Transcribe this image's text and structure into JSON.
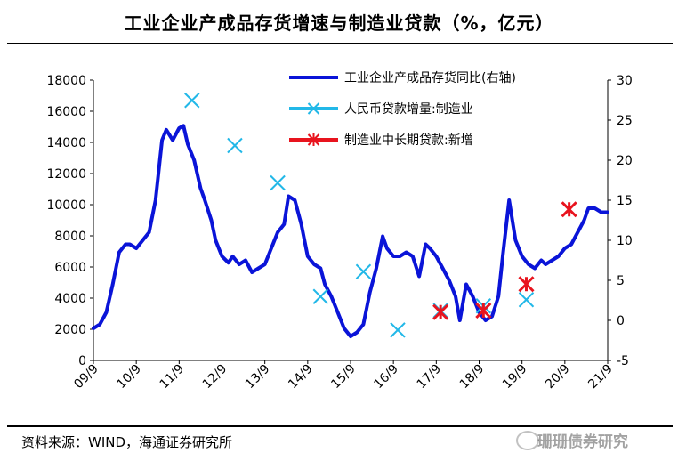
{
  "header": {
    "title": "工业企业产成品存货增速与制造业贷款（%，亿元）",
    "source": "资料来源：WIND，海通证券研究所",
    "watermark": "珊珊债券研究"
  },
  "colors": {
    "line": "#0a14d8",
    "cyan": "#22b8e8",
    "red": "#e8141e"
  },
  "chart_data": {
    "type": "line",
    "title": "工业企业产成品存货增速与制造业贷款（%，亿元）",
    "left_axis": {
      "ylim": [
        0,
        18000
      ],
      "ticks": [
        0,
        2000,
        4000,
        6000,
        8000,
        10000,
        12000,
        14000,
        16000,
        18000
      ]
    },
    "right_axis": {
      "ylim": [
        -5,
        30
      ],
      "ticks": [
        -5,
        0,
        5,
        10,
        15,
        20,
        25,
        30
      ]
    },
    "x_axis": {
      "ticks": [
        "09/9",
        "10/9",
        "11/9",
        "12/9",
        "13/9",
        "14/9",
        "15/9",
        "16/9",
        "17/9",
        "18/9",
        "19/9",
        "20/9",
        "21/9"
      ],
      "range": [
        0,
        12
      ]
    },
    "series": [
      {
        "name": "工业企业产成品存货同比(右轴)",
        "axis": "right",
        "style": "line",
        "x": [
          0,
          0.15,
          0.3,
          0.45,
          0.6,
          0.75,
          0.85,
          1.0,
          1.15,
          1.3,
          1.45,
          1.6,
          1.7,
          1.85,
          2.0,
          2.1,
          2.2,
          2.35,
          2.5,
          2.6,
          2.75,
          2.85,
          3.0,
          3.15,
          3.25,
          3.4,
          3.55,
          3.7,
          3.85,
          4.0,
          4.15,
          4.3,
          4.45,
          4.55,
          4.7,
          4.85,
          5.0,
          5.15,
          5.3,
          5.4,
          5.55,
          5.7,
          5.85,
          6.0,
          6.15,
          6.3,
          6.45,
          6.6,
          6.75,
          6.85,
          7.0,
          7.15,
          7.3,
          7.45,
          7.6,
          7.75,
          7.85,
          8.0,
          8.15,
          8.3,
          8.45,
          8.55,
          8.7,
          8.85,
          9.0,
          9.15,
          9.3,
          9.45,
          9.55,
          9.7,
          9.85,
          10.0,
          10.15,
          10.3,
          10.45,
          10.55,
          10.7,
          10.85,
          11.0,
          11.15,
          11.3,
          11.45,
          11.55,
          11.7,
          11.85,
          12.0
        ],
        "values": [
          -1.0,
          -0.5,
          1.0,
          4.5,
          8.5,
          9.5,
          9.5,
          9.0,
          10.0,
          11.0,
          15.0,
          22.5,
          23.8,
          22.5,
          24.0,
          24.3,
          22.0,
          20.0,
          16.5,
          15.0,
          12.5,
          10.0,
          8.0,
          7.2,
          8.0,
          7.0,
          7.5,
          6.0,
          6.5,
          7.0,
          9.0,
          11.0,
          12.0,
          15.5,
          15.0,
          12.0,
          8.0,
          7.0,
          6.5,
          4.5,
          3.0,
          1.0,
          -1.0,
          -2.0,
          -1.5,
          -0.5,
          3.5,
          6.5,
          10.5,
          9.0,
          8.0,
          8.0,
          8.5,
          8.0,
          5.5,
          9.5,
          9.0,
          8.0,
          6.5,
          5.0,
          3.0,
          0.0,
          4.5,
          3.0,
          1.0,
          0.0,
          0.5,
          3.0,
          8.0,
          15.0,
          10.0,
          8.0,
          7.0,
          6.5,
          7.5,
          7.0,
          7.5,
          8.0,
          9.0,
          9.5,
          11.0,
          12.5,
          14.0,
          14.0,
          13.5,
          13.5
        ]
      },
      {
        "name": "人民币贷款增量:制造业",
        "axis": "left",
        "style": "cross",
        "x": [
          2.3,
          3.3,
          4.3,
          5.3,
          6.3,
          7.1,
          8.1,
          9.1,
          10.1
        ],
        "values": [
          16700,
          13800,
          11400,
          4100,
          5700,
          1950,
          3200,
          3500,
          3900
        ]
      },
      {
        "name": "制造业中长期贷款:新增",
        "axis": "left",
        "style": "star",
        "x": [
          8.1,
          9.1,
          10.1,
          11.1
        ],
        "values": [
          3100,
          3200,
          4900,
          9700
        ]
      }
    ]
  }
}
